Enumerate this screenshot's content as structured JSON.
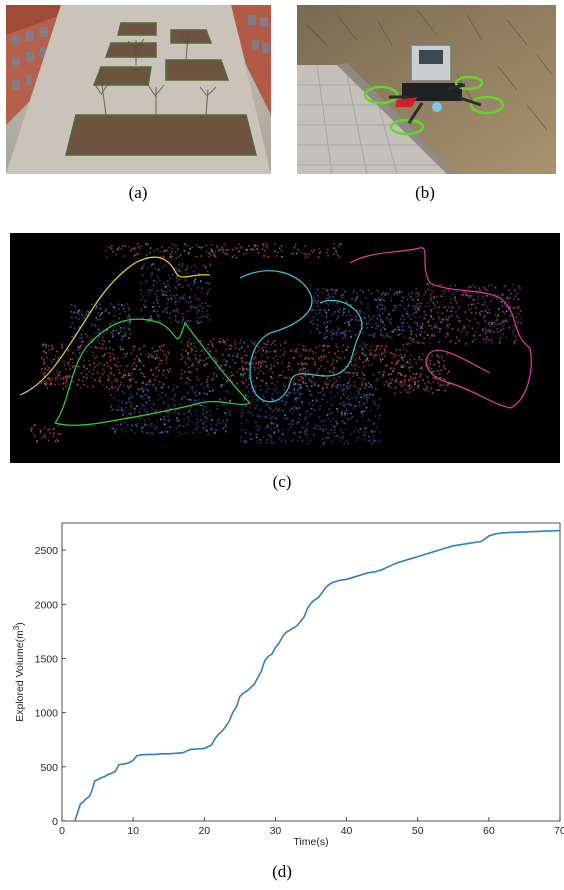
{
  "captions": {
    "a": "(a)",
    "b": "(b)",
    "c": "(c)",
    "d": "(d)"
  },
  "photos": {
    "a": {
      "icon": "courtyard-photo"
    },
    "b": {
      "icon": "drone-photo"
    },
    "c": {
      "icon": "point-cloud-map",
      "trajectory_colors": [
        "#e0d23c",
        "#2fd23c",
        "#3cc8e0",
        "#e03ca8"
      ]
    }
  },
  "chart_data": {
    "type": "line",
    "xlabel": "Time(s)",
    "ylabel": "Explored Volume(m",
    "ylabel_sup": "3",
    "ylabel_close": ")",
    "xlim": [
      0,
      70
    ],
    "ylim": [
      0,
      2750
    ],
    "xticks": [
      0,
      10,
      20,
      30,
      40,
      50,
      60,
      70
    ],
    "yticks": [
      0,
      500,
      1000,
      1500,
      2000,
      2500
    ],
    "line_color": "#2f7fc1",
    "series": [
      {
        "x": [
          1.8,
          2.2,
          2.6,
          3.0,
          3.3,
          3.6,
          3.9,
          4.3,
          4.6,
          5.0,
          5.5,
          6.0,
          6.5,
          7.0,
          7.5,
          8.0,
          8.5,
          9.0,
          9.5,
          10.0,
          10.5,
          11.0,
          12.0,
          13.0,
          14.0,
          15.0,
          16.0,
          17.0,
          18.0,
          19.0,
          20.0,
          21.0,
          21.5,
          22.0,
          22.5,
          23.0,
          23.5,
          24.0,
          24.5,
          25.0,
          25.5,
          26.0,
          26.5,
          27.0,
          27.5,
          28.0,
          28.5,
          29.0,
          29.5,
          30.0,
          30.5,
          31.0,
          31.5,
          32.0,
          32.5,
          33.0,
          33.5,
          34.0,
          34.5,
          35.0,
          35.5,
          36.0,
          36.5,
          37.0,
          37.5,
          38.0,
          38.5,
          39.0,
          40.0,
          41.0,
          42.0,
          43.0,
          44.0,
          45.0,
          46.0,
          47.0,
          48.0,
          49.0,
          50.0,
          51.0,
          52.0,
          53.0,
          54.0,
          55.0,
          56.0,
          57.0,
          58.0,
          59.0,
          60.0,
          61.0,
          62.0,
          64.0,
          66.0,
          68.0,
          70.0
        ],
        "y": [
          0,
          80,
          160,
          175,
          200,
          215,
          230,
          300,
          370,
          380,
          400,
          410,
          430,
          440,
          460,
          520,
          525,
          530,
          540,
          560,
          600,
          610,
          615,
          615,
          620,
          620,
          625,
          630,
          660,
          665,
          670,
          700,
          760,
          800,
          830,
          870,
          920,
          1000,
          1050,
          1150,
          1180,
          1200,
          1230,
          1260,
          1320,
          1380,
          1480,
          1520,
          1540,
          1600,
          1640,
          1700,
          1740,
          1760,
          1780,
          1800,
          1840,
          1880,
          1960,
          2010,
          2040,
          2060,
          2100,
          2150,
          2180,
          2200,
          2210,
          2220,
          2230,
          2250,
          2270,
          2290,
          2300,
          2320,
          2350,
          2380,
          2400,
          2420,
          2440,
          2460,
          2480,
          2500,
          2520,
          2540,
          2550,
          2560,
          2570,
          2580,
          2630,
          2650,
          2660,
          2665,
          2670,
          2675,
          2680
        ]
      }
    ]
  }
}
